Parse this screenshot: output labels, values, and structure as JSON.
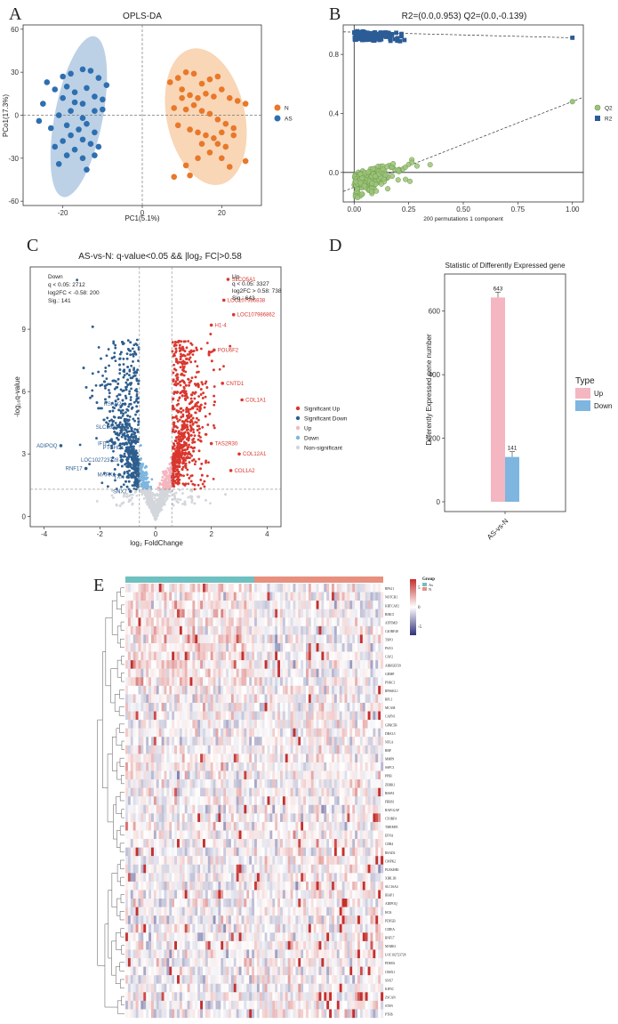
{
  "panel_labels": [
    "A",
    "B",
    "C",
    "D",
    "E"
  ],
  "chart_data": [
    {
      "id": "A",
      "type": "scatter",
      "title": "OPLS-DA",
      "xlabel": "PC1(5.1%)",
      "ylabel": "PCo1(17.3%)",
      "xlim": [
        -30,
        30
      ],
      "ylim": [
        -63,
        63
      ],
      "xticks": [
        -20,
        0,
        20
      ],
      "yticks": [
        -60,
        -30,
        0,
        30,
        60
      ],
      "legend": [
        {
          "name": "N",
          "color": "#E8782A"
        },
        {
          "name": "AS",
          "color": "#2E6FB0"
        }
      ],
      "groups": [
        {
          "name": "N",
          "color": "#E8782A",
          "points": [
            [
              7,
              23
            ],
            [
              9,
              26
            ],
            [
              11,
              30
            ],
            [
              13,
              29
            ],
            [
              15,
              22
            ],
            [
              17,
              25
            ],
            [
              19,
              27
            ],
            [
              10,
              18
            ],
            [
              12,
              14
            ],
            [
              14,
              12
            ],
            [
              16,
              15
            ],
            [
              18,
              13
            ],
            [
              20,
              18
            ],
            [
              22,
              12
            ],
            [
              24,
              10
            ],
            [
              26,
              8
            ],
            [
              8,
              5
            ],
            [
              11,
              4
            ],
            [
              13,
              7
            ],
            [
              15,
              3
            ],
            [
              17,
              1
            ],
            [
              19,
              -3
            ],
            [
              21,
              -6
            ],
            [
              23,
              -9
            ],
            [
              9,
              -7
            ],
            [
              12,
              -10
            ],
            [
              14,
              -12
            ],
            [
              16,
              -14
            ],
            [
              18,
              -16
            ],
            [
              20,
              -12
            ],
            [
              23,
              -14
            ],
            [
              15,
              -20
            ],
            [
              19,
              -20
            ],
            [
              21,
              -22
            ],
            [
              17,
              -26
            ],
            [
              11,
              -35
            ],
            [
              14,
              -30
            ],
            [
              22,
              -36
            ],
            [
              26,
              -32
            ],
            [
              12,
              -42
            ],
            [
              8,
              -43
            ],
            [
              20,
              -30
            ],
            [
              10,
              12
            ]
          ]
        },
        {
          "name": "AS",
          "color": "#2E6FB0",
          "points": [
            [
              -24,
              23
            ],
            [
              -20,
              27
            ],
            [
              -18,
              29
            ],
            [
              -15,
              32
            ],
            [
              -13,
              31
            ],
            [
              -11,
              26
            ],
            [
              -9,
              21
            ],
            [
              -22,
              18
            ],
            [
              -19,
              20
            ],
            [
              -17,
              16
            ],
            [
              -14,
              19
            ],
            [
              -12,
              13
            ],
            [
              -10,
              11
            ],
            [
              -20,
              12
            ],
            [
              -17,
              9
            ],
            [
              -15,
              8
            ],
            [
              -12,
              3
            ],
            [
              -10,
              4
            ],
            [
              -18,
              3
            ],
            [
              -21,
              0
            ],
            [
              -15,
              -2
            ],
            [
              -14,
              -6
            ],
            [
              -19,
              -7
            ],
            [
              -23,
              -9
            ],
            [
              -16,
              -10
            ],
            [
              -12,
              -12
            ],
            [
              -18,
              -14
            ],
            [
              -20,
              -18
            ],
            [
              -15,
              -17
            ],
            [
              -13,
              -20
            ],
            [
              -22,
              -22
            ],
            [
              -17,
              -24
            ],
            [
              -11,
              -22
            ],
            [
              -19,
              -28
            ],
            [
              -15,
              -30
            ],
            [
              -21,
              -34
            ],
            [
              -12,
              -28
            ],
            [
              -14,
              -38
            ],
            [
              -26,
              -4
            ],
            [
              -25,
              8
            ]
          ]
        }
      ]
    },
    {
      "id": "B",
      "type": "scatter",
      "title": "R2=(0.0,0.953)  Q2=(0.0,-0.139)",
      "xlabel": "200 permutations 1 component",
      "xlim": [
        -0.05,
        1.05
      ],
      "ylim": [
        -0.2,
        1.0
      ],
      "xticks": [
        "0.00",
        "0.25",
        "0.50",
        "0.75",
        "1.00"
      ],
      "yticks": [
        "0.0",
        "0.4",
        "0.8"
      ],
      "legend": [
        {
          "name": "Q2",
          "color": "#9CC47A"
        },
        {
          "name": "R2",
          "color": "#2C5C96"
        }
      ],
      "series": [
        {
          "name": "R2",
          "shape": "square",
          "color": "#2C5C96",
          "intercept": 0.953,
          "original": [
            1.0,
            0.913
          ]
        },
        {
          "name": "Q2",
          "shape": "circle",
          "color": "#9CC47A",
          "intercept": -0.139,
          "original": [
            1.0,
            0.48
          ]
        }
      ]
    },
    {
      "id": "C",
      "type": "scatter",
      "title": "AS-vs-N: q-value<0.05 && |log₂ FC|>0.58",
      "xlabel": "log₂ FoldChange",
      "ylabel": "-log₁₀q-value",
      "xlim": [
        -4.5,
        4.5
      ],
      "ylim": [
        -0.5,
        12
      ],
      "xticks": [
        -4,
        -2,
        0,
        2,
        4
      ],
      "yticks": [
        0,
        3,
        6,
        9
      ],
      "thresholds": {
        "fc": 0.58,
        "q": 1.3
      },
      "annotation_down": [
        "Down",
        "q < 0.05: 2712",
        "log2FC < -0.58: 200",
        "Sig.: 141"
      ],
      "annotation_up": [
        "Up",
        "q < 0.05: 3327",
        "log2FC > 0.58: 738",
        "Sig.: 643"
      ],
      "legend": [
        {
          "name": "Significant Up",
          "color": "#D9372E"
        },
        {
          "name": "Significant Down",
          "color": "#2E5E8E"
        },
        {
          "name": "Up",
          "color": "#F4B6C0"
        },
        {
          "name": "Down",
          "color": "#7EB6E0"
        },
        {
          "name": "Non-significant",
          "color": "#D3D6DB"
        }
      ],
      "labeled_genes": [
        {
          "name": "SLCO5A1",
          "x": 2.6,
          "y": 11.4,
          "dir": "up"
        },
        {
          "name": "LOC107986838",
          "x": 2.45,
          "y": 10.4,
          "dir": "up"
        },
        {
          "name": "LOC107986862",
          "x": 2.8,
          "y": 9.7,
          "dir": "up"
        },
        {
          "name": "H1-4",
          "x": 2.0,
          "y": 9.2,
          "dir": "up"
        },
        {
          "name": "POU6F2",
          "x": 2.1,
          "y": 8.0,
          "dir": "up"
        },
        {
          "name": "CNTD1",
          "x": 2.4,
          "y": 6.4,
          "dir": "up"
        },
        {
          "name": "COL1A1",
          "x": 3.1,
          "y": 5.6,
          "dir": "up"
        },
        {
          "name": "TAS2R30",
          "x": 2.0,
          "y": 3.5,
          "dir": "up"
        },
        {
          "name": "COL12A1",
          "x": 3.0,
          "y": 3.0,
          "dir": "up"
        },
        {
          "name": "COL1A2",
          "x": 2.7,
          "y": 2.2,
          "dir": "up"
        },
        {
          "name": "RSAD2",
          "x": -1.1,
          "y": 5.4,
          "dir": "down"
        },
        {
          "name": "SLC16A4",
          "x": -1.2,
          "y": 4.3,
          "dir": "down"
        },
        {
          "name": "IFIT1",
          "x": -1.5,
          "y": 3.5,
          "dir": "down"
        },
        {
          "name": "PTCHD1",
          "x": -1.0,
          "y": 3.3,
          "dir": "down"
        },
        {
          "name": "ADIPOQ",
          "x": -3.4,
          "y": 3.4,
          "dir": "down"
        },
        {
          "name": "LOC102723728",
          "x": -1.2,
          "y": 2.7,
          "dir": "down"
        },
        {
          "name": "RNF17",
          "x": -2.5,
          "y": 2.3,
          "dir": "down"
        },
        {
          "name": "MARK1",
          "x": -1.3,
          "y": 2.0,
          "dir": "down"
        },
        {
          "name": "TXN",
          "x": -1.0,
          "y": 1.9,
          "dir": "down"
        },
        {
          "name": "SNX7",
          "x": -0.9,
          "y": 1.2,
          "dir": "down"
        }
      ]
    },
    {
      "id": "D",
      "type": "bar",
      "title": "Statistic of Differently Expressed gene",
      "ylabel": "Differently Expressed gene number",
      "categories": [
        "AS-vs-N"
      ],
      "series": [
        {
          "name": "Up",
          "values": [
            643
          ],
          "color": "#F4B6C0"
        },
        {
          "name": "Down",
          "values": [
            141
          ],
          "color": "#7EB6E0"
        }
      ],
      "ylim": [
        0,
        700
      ],
      "yticks": [
        0,
        200,
        400,
        600
      ],
      "legend_title": "Type"
    },
    {
      "id": "E",
      "type": "heatmap",
      "legend_title": "Group",
      "groups": [
        {
          "name": "As",
          "color": "#6FC0C0"
        },
        {
          "name": "N",
          "color": "#E8907F"
        }
      ],
      "colorbar": {
        "ticks": [
          5,
          0,
          -5
        ],
        "low": "#31307A",
        "mid": "#FFFFFF",
        "high": "#C3302E"
      },
      "columns": 100,
      "genes": [
        "RPS21",
        "NOTCH1",
        "KRTCAP2",
        "BIRC5",
        "ATP5MD",
        "C4ORF48",
        "TSPO",
        "PAX3",
        "CAV2",
        "ARHGEF39",
        "GDMP",
        "PNKC1",
        "RPS6KL1",
        "RPL1",
        "MCAM",
        "CAPN1",
        "GPRC5B",
        "DBAL5",
        "NFLA",
        "RBP",
        "MMP9",
        "SSPC3",
        "PPIB",
        "ZBRK1",
        "RSSP4",
        "FRRS1",
        "RAP1GAP",
        "C5ORF4",
        "TMEM95",
        "EFNA",
        "CDR4",
        "RSAD2",
        "CMPK2",
        "PLEKHB1",
        "XIRL1B",
        "SLC16A4",
        "IBAP1",
        "ADIPOQ",
        "HCK",
        "PDFGB",
        "CIDEA",
        "RNF17",
        "MARK1",
        "LOC102723728",
        "PDE8A",
        "CBSX1",
        "SNX7",
        "KIF5C",
        "ZSCAN",
        "STSN",
        "PTHS"
      ]
    }
  ]
}
